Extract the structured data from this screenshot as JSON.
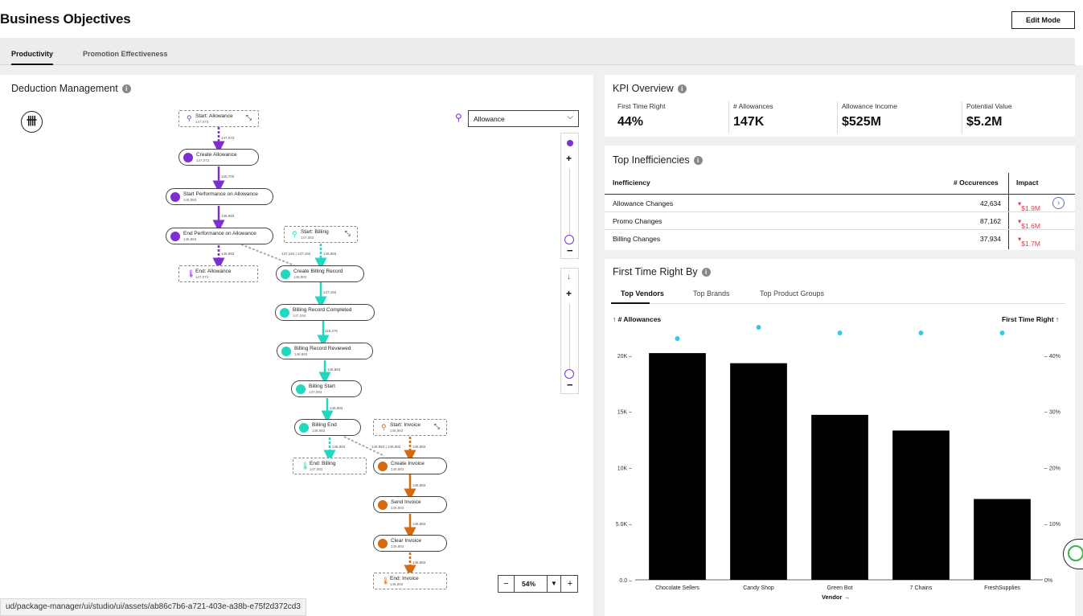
{
  "header": {
    "title": "Business Objectives",
    "edit_label": "Edit Mode"
  },
  "tabs": [
    {
      "label": "Productivity",
      "active": true
    },
    {
      "label": "Promotion Effectiveness",
      "active": false
    }
  ],
  "deduction": {
    "title": "Deduction Management",
    "dropdown_value": "Allowance",
    "zoom_label": "54%",
    "zoom_minus": "−",
    "zoom_plus": "+",
    "nodes": {
      "start_allowance": {
        "label": "Start: Allowance",
        "count": "147,073"
      },
      "create_allowance": {
        "label": "Create Allowance",
        "count": "147,073"
      },
      "start_perf": {
        "label": "Start Performance on Allowance",
        "count": "146,983"
      },
      "end_perf": {
        "label": "End Performance on Allowance",
        "count": "146,983"
      },
      "end_allowance": {
        "label": "End: Allowance",
        "count": "147,073"
      },
      "start_billing": {
        "label": "Start: Billing",
        "count": "147,083"
      },
      "create_billing": {
        "label": "Create Billing Record",
        "count": "146,983"
      },
      "billing_completed": {
        "label": "Billing Record Completed",
        "count": "147,044"
      },
      "billing_reviewed": {
        "label": "Billing Record Reviewed",
        "count": "146,983"
      },
      "billing_start": {
        "label": "Billing Start",
        "count": "147,083"
      },
      "billing_end": {
        "label": "Billing End",
        "count": "146,983"
      },
      "end_billing": {
        "label": "End: Billing",
        "count": "147,083"
      },
      "start_invoice": {
        "label": "Start: Invoice",
        "count": "146,983"
      },
      "create_invoice": {
        "label": "Create Invoice",
        "count": "146,983"
      },
      "send_invoice": {
        "label": "Send Invoice",
        "count": "146,983"
      },
      "clear_invoice": {
        "label": "Clear Invoice",
        "count": "146,983"
      },
      "end_invoice": {
        "label": "End: Invoice",
        "count": "146,983"
      }
    },
    "edge_labels": {
      "e1": "147,073",
      "e2": "125,700",
      "e3": "146,983",
      "e4": "146,983",
      "e5": "137,184 | 137,184",
      "e6": "146,983",
      "e7": "137,184",
      "e8": "119,276",
      "e9": "146,983",
      "e10": "146,983",
      "e11": "146,983",
      "e12": "146,983 | 146,983",
      "e13": "146,983",
      "e14": "146,983",
      "e15": "146,983",
      "e16": "146,983"
    }
  },
  "kpi": {
    "title": "KPI Overview",
    "items": [
      {
        "label": "First Time Right",
        "value": "44%"
      },
      {
        "label": "# Allowances",
        "value": "147K"
      },
      {
        "label": "Allowance Income",
        "value": "$525M"
      },
      {
        "label": "Potential Value",
        "value": "$5.2M"
      }
    ]
  },
  "inefficiencies": {
    "title": "Top Inefficiencies",
    "col_name": "Inefficiency",
    "col_occ": "# Occurences",
    "col_impact": "Impact",
    "rows": [
      {
        "name": "Allowance Changes",
        "occ": "42,634",
        "impact": "$1.9M"
      },
      {
        "name": "Promo Changes",
        "occ": "87,162",
        "impact": "$1.6M"
      },
      {
        "name": "Billing Changes",
        "occ": "37,934",
        "impact": "$1.7M"
      }
    ]
  },
  "ftr": {
    "title": "First Time Right By",
    "tabs": [
      "Top Vendors",
      "Top Brands",
      "Top Product Groups"
    ],
    "left_axis_label": "↑ # Allowances",
    "right_axis_label": "First Time Right ↑",
    "x_axis_label": "Vendor →"
  },
  "chart_data": {
    "type": "bar",
    "categories": [
      "Chocolate Sellers",
      "Candy Shop",
      "Green Bot",
      "7 Chains",
      "FreshSupplies"
    ],
    "series": [
      {
        "name": "# Allowances",
        "values": [
          20200,
          19300,
          14700,
          13300,
          7200
        ]
      },
      {
        "name": "First Time Right",
        "values": [
          43,
          45,
          44,
          44,
          44
        ]
      }
    ],
    "left_ticks": [
      "0.0",
      "5.0K",
      "10K",
      "15K",
      "20K"
    ],
    "right_ticks": [
      "0%",
      "10%",
      "20%",
      "30%",
      "40%"
    ],
    "ylim_left": [
      0,
      22500
    ],
    "ylim_right": [
      0,
      45
    ],
    "xlabel": "Vendor →",
    "ylabel": "↑ # Allowances",
    "y2label": "First Time Right ↑",
    "bar_color": "#000000",
    "dot_color": "#37c8e8"
  },
  "status_url": "ud/package-manager/ui/studio/ui/assets/ab86c7b6-a721-403e-a38b-e75f2d372cd3",
  "colors": {
    "purple": "#7e2fcf",
    "teal": "#20d8bf",
    "orange": "#d66a10",
    "red": "#e03a4a"
  }
}
